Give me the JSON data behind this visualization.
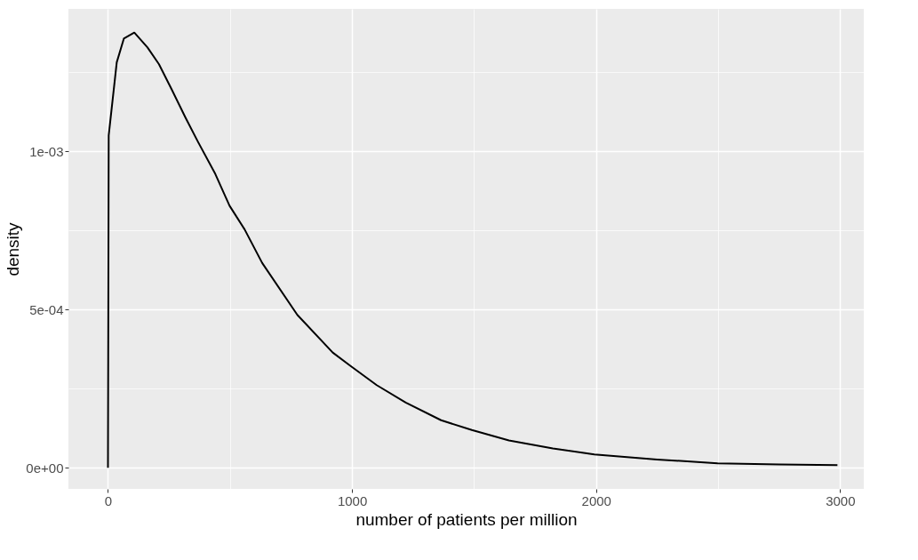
{
  "chart_data": {
    "type": "line",
    "xlabel": "number of patients per million",
    "ylabel": "density",
    "x": [
      0,
      1,
      2,
      3,
      24,
      36,
      65,
      108,
      162,
      209,
      260,
      318,
      368,
      440,
      498,
      560,
      632,
      776,
      921,
      993,
      1101,
      1220,
      1365,
      1491,
      1643,
      1823,
      1993,
      2250,
      2498,
      2750,
      2989
    ],
    "series": [
      {
        "color": "#000000",
        "values": [
          0,
          0.00035,
          0.0007,
          0.00105,
          0.001197,
          0.001281,
          0.001356,
          0.001375,
          0.001328,
          0.001275,
          0.001197,
          0.001106,
          0.001031,
          0.000928,
          0.000828,
          0.000753,
          0.000647,
          0.000483,
          0.000364,
          0.000322,
          0.000261,
          0.000206,
          0.00015,
          0.000119,
          8.6e-05,
          6.1e-05,
          4.2e-05,
          2.6e-05,
          1.4e-05,
          1e-05,
          8e-06
        ]
      }
    ],
    "xlim": [
      -162,
      3097
    ],
    "ylim": [
      -6.7e-05,
      0.00145
    ],
    "xticks": [
      0,
      {
        "value": 500,
        "label": null
      },
      1000,
      {
        "value": 1500,
        "label": null
      },
      2000,
      {
        "value": 2500,
        "label": null
      },
      3000
    ],
    "yticks": [
      {
        "value": 0,
        "label": "0e+00"
      },
      {
        "value": 0.00025,
        "label": null
      },
      {
        "value": 0.0005,
        "label": "5e-04"
      },
      {
        "value": 0.00075,
        "label": null
      },
      {
        "value": 0.001,
        "label": "1e-03"
      },
      {
        "value": 0.00125,
        "label": null
      }
    ],
    "grid": true,
    "marker": "none",
    "line_style": "solid"
  }
}
